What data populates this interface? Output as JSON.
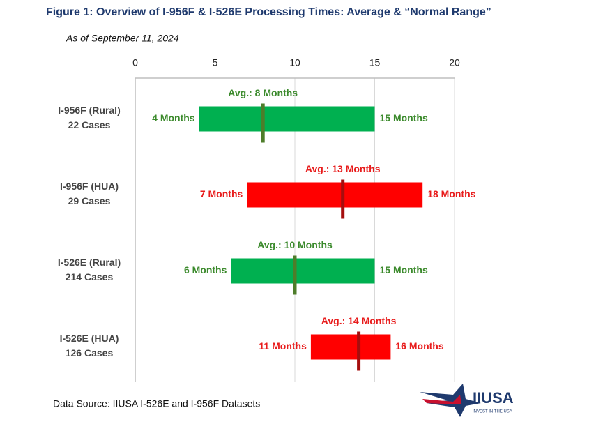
{
  "chart_data": {
    "type": "range_bar",
    "title": "Figure 1: Overview of I-956F & I-526E Processing Times: Average & “Normal Range”",
    "subtitle": "As of September 11, 2024",
    "source": "Data Source: IIUSA I-526E and I-956F Datasets",
    "categories": [
      "I-956F (Rural)",
      "I-956F (HUA)",
      "I-526E (Rural)",
      "I-526E (HUA)"
    ],
    "case_counts": [
      "22 Cases",
      "29 Cases",
      "214 Cases",
      "126 Cases"
    ],
    "low": {
      "values": [
        4,
        7,
        6,
        11
      ],
      "value_labels": [
        "4 Months",
        "7 Months",
        "6 Months",
        "11 Months"
      ]
    },
    "high": {
      "values": [
        15,
        18,
        15,
        16
      ],
      "value_labels": [
        "15 Months",
        "18 Months",
        "15 Months",
        "16 Months"
      ]
    },
    "average": {
      "values": [
        8,
        13,
        10,
        14
      ],
      "value_labels": [
        "Avg.: 8 Months",
        "Avg.: 13 Months",
        "Avg.: 10 Months",
        "Avg.: 14 Months"
      ]
    },
    "colors": [
      "#00b050",
      "#ff0000",
      "#00b050",
      "#ff0000"
    ],
    "average_colors": [
      "#4e7d2a",
      "#a50e0e",
      "#4e7d2a",
      "#a50e0e"
    ],
    "label_colors": [
      "#3b8a2c",
      "#e81c1c",
      "#3b8a2c",
      "#e81c1c"
    ],
    "xlim": [
      0,
      20
    ],
    "xticks": [
      0,
      5,
      10,
      15,
      20
    ],
    "grid": true
  },
  "logo": {
    "name": "IIUSA",
    "tagline": "INVEST IN THE USA"
  }
}
